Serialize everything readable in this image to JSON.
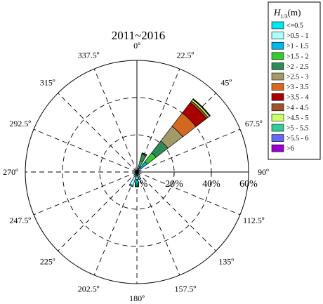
{
  "chart_data": {
    "type": "rose",
    "title": "2011~2016",
    "direction_labels": [
      "0º",
      "22.5º",
      "45º",
      "67.5º",
      "90º",
      "112.5º",
      "135º",
      "157.5º",
      "180º",
      "202.5º",
      "225º",
      "247.5º",
      "270º",
      "292.5º",
      "315º",
      "337.5º"
    ],
    "radial_ticks": [
      0,
      20,
      40,
      60
    ],
    "radial_tick_labels": [
      "0%",
      "20%",
      "40%",
      "60%"
    ],
    "rlim": [
      0,
      60
    ],
    "legend": {
      "title_main": "H",
      "title_sub": "1/3",
      "title_unit": "(m)",
      "position": "top-right",
      "entries": [
        "<=0.5",
        ">0.5 - 1",
        ">1 - 1.5",
        ">1.5 - 2",
        ">2 - 2.5",
        ">2.5 - 3",
        ">3 - 3.5",
        ">3.5 - 4",
        ">4 - 4.5",
        ">4.5 - 5",
        ">5 - 5.5",
        ">5.5 - 6",
        ">6"
      ],
      "colors": [
        "#00e5ee",
        "#aaffff",
        "#00b8ee",
        "#33cc33",
        "#2e8b57",
        "#a39a6a",
        "#d2691e",
        "#aa0000",
        "#a0522d",
        "#ccff66",
        "#33cc99",
        "#6666ff",
        "#9900cc"
      ]
    },
    "bins": [
      {
        "direction": 22.5,
        "values": [
          0.5,
          1.5,
          1.5,
          2.6,
          3.8,
          0.5,
          0.2,
          0.1,
          0,
          0,
          0,
          0,
          0
        ]
      },
      {
        "direction": 45,
        "values": [
          1.0,
          2.0,
          4.0,
          6.0,
          8.0,
          10.0,
          9.0,
          7.0,
          1.2,
          1.0,
          0.3,
          0.1,
          0.1
        ]
      },
      {
        "direction": 157.5,
        "values": [
          3.0,
          1.0,
          0.3,
          0,
          0,
          0,
          0,
          0,
          0,
          0,
          0,
          0,
          0
        ]
      },
      {
        "direction": 180,
        "values": [
          2.0,
          2.0,
          2.5,
          1.0,
          0.5,
          0,
          0,
          0,
          0,
          0,
          0,
          0,
          0
        ]
      },
      {
        "direction": 202.5,
        "values": [
          2.5,
          5.0,
          0.7,
          0,
          0,
          0,
          0,
          0,
          0,
          0,
          0,
          0,
          0
        ]
      }
    ]
  }
}
